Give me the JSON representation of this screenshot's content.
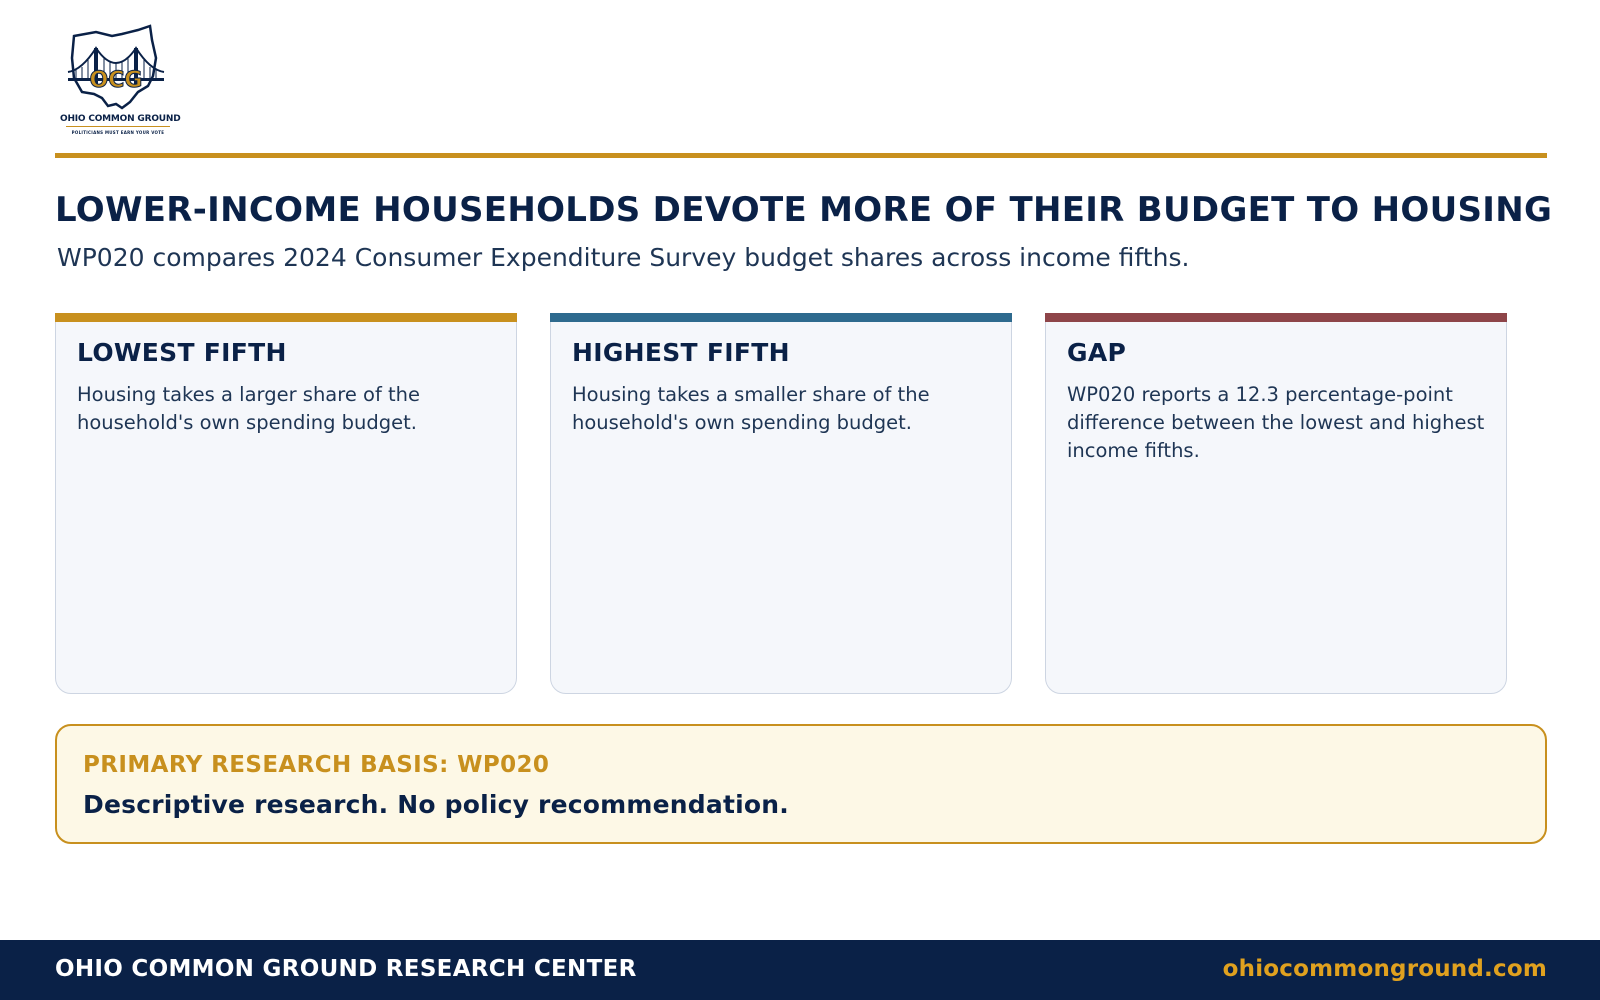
{
  "logo": {
    "mark": "OCG",
    "name": "OHIO COMMON GROUND",
    "tagline": "POLITICIANS MUST EARN YOUR VOTE"
  },
  "header": {
    "title": "LOWER-INCOME HOUSEHOLDS DEVOTE MORE OF THEIR BUDGET TO HOUSING",
    "subtitle": "WP020 compares 2024 Consumer Expenditure Survey budget shares across income fifths."
  },
  "cards": [
    {
      "title": "LOWEST FIFTH",
      "body": "Housing takes a larger share of the household's own spending budget.",
      "accent": "#c8901e"
    },
    {
      "title": "HIGHEST FIFTH",
      "body": "Housing takes a smaller share of the household's own spending budget.",
      "accent": "#2e6a8e"
    },
    {
      "title": "GAP",
      "body": "WP020 reports a 12.3 percentage-point difference between the lowest and highest income fifths.",
      "accent": "#8e4549"
    }
  ],
  "basis": {
    "label": "PRIMARY RESEARCH BASIS: WP020",
    "text": "Descriptive research. No policy recommendation."
  },
  "footer": {
    "left": "OHIO COMMON GROUND RESEARCH CENTER",
    "right": "ohiocommonground.com"
  },
  "colors": {
    "navy": "#0a2147",
    "gold": "#c8901e",
    "blue": "#2e6a8e",
    "maroon": "#8e4549"
  }
}
